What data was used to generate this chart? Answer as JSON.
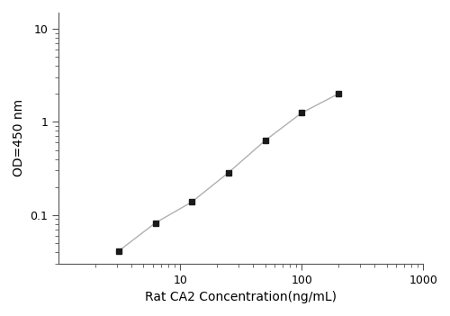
{
  "x": [
    3.125,
    6.25,
    12.5,
    25,
    50,
    100,
    200
  ],
  "y": [
    0.041,
    0.082,
    0.138,
    0.285,
    0.63,
    1.25,
    2.0
  ],
  "xlabel": "Rat CA2 Concentration(ng/mL)",
  "ylabel": "OD=450 nm",
  "xlim": [
    1,
    1000
  ],
  "ylim": [
    0.03,
    15
  ],
  "line_color": "#b0b0b0",
  "marker_color": "#1a1a1a",
  "marker": "s",
  "marker_size": 5,
  "line_width": 1.0,
  "background_color": "#ffffff",
  "font_size_label": 10,
  "font_size_tick": 9,
  "yticks": [
    0.1,
    1,
    10
  ],
  "ytick_labels": [
    "0.1",
    "1",
    "10"
  ],
  "xticks": [
    10,
    100,
    1000
  ],
  "xtick_labels": [
    "10",
    "100",
    "1000"
  ]
}
